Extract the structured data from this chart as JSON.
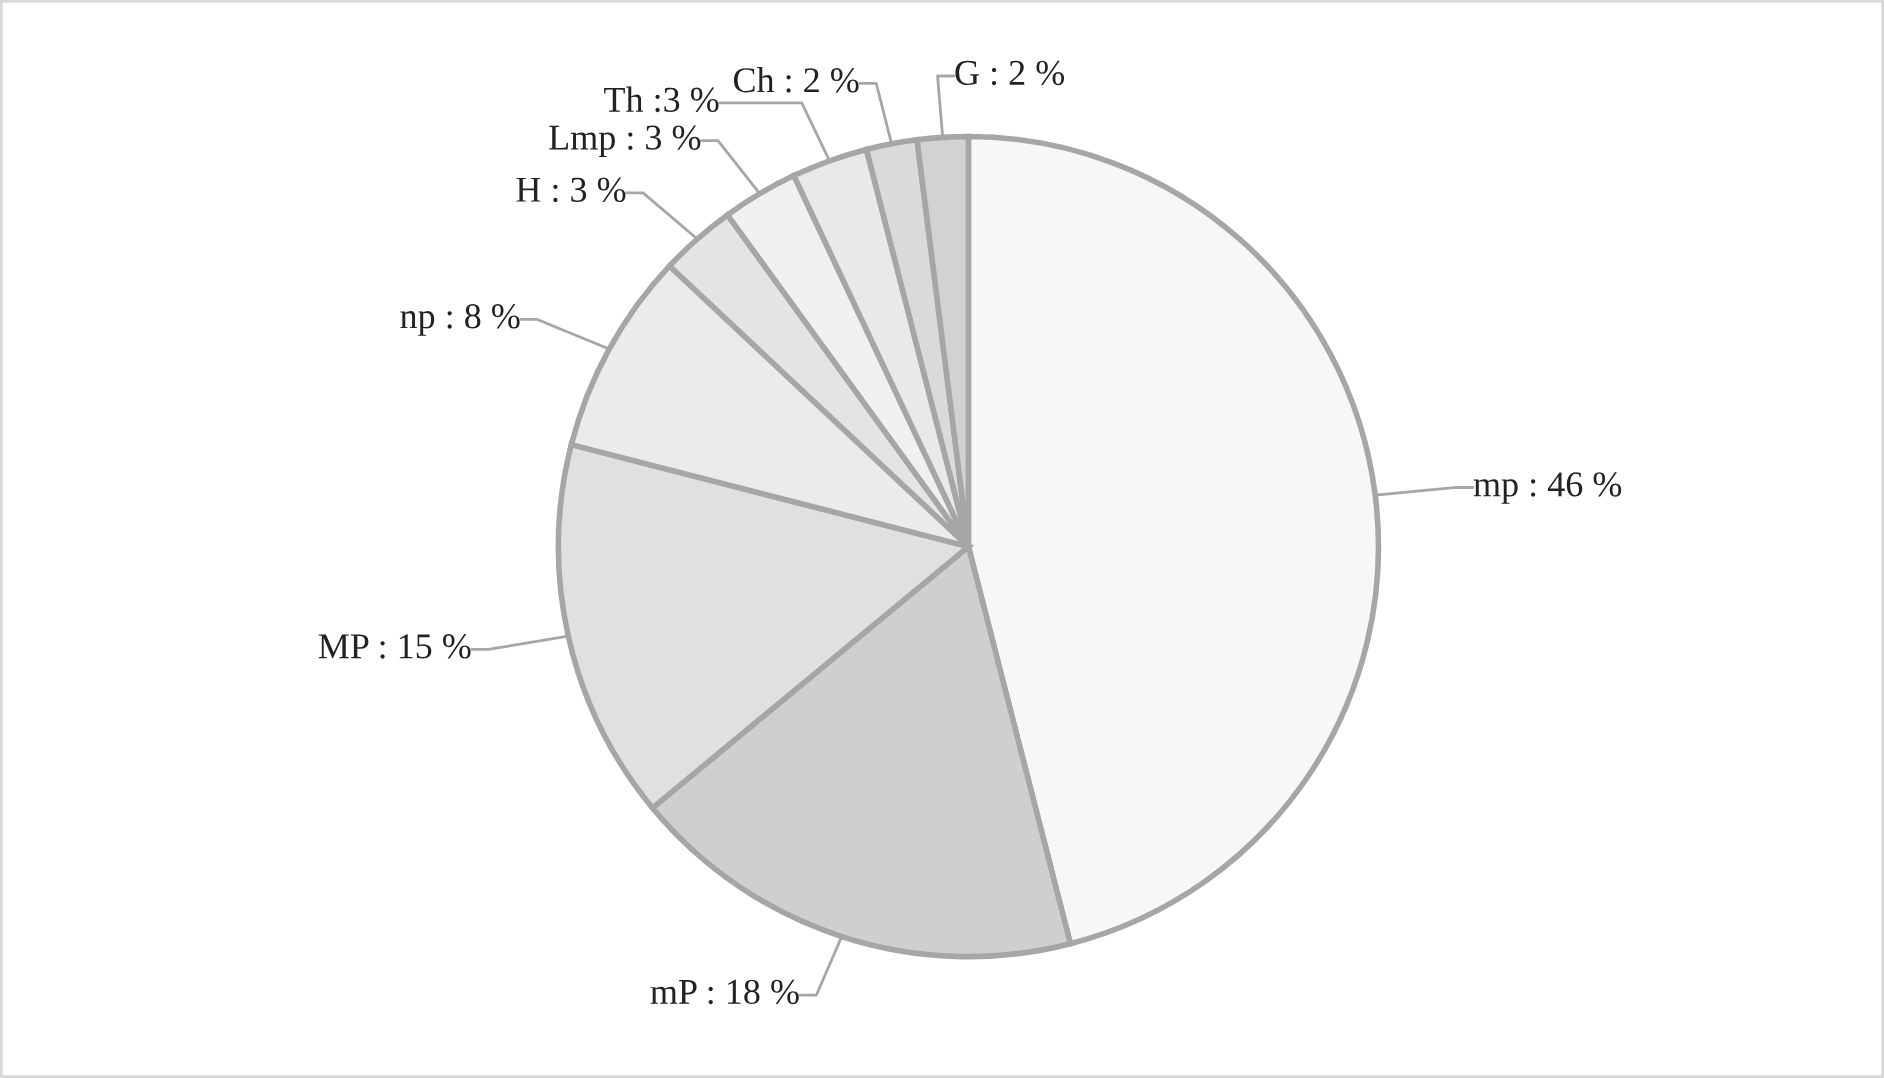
{
  "chart_data": {
    "type": "pie",
    "categories": [
      "mp : 46 %",
      "mP : 18 %",
      "MP : 15 %",
      "np : 8 %",
      "H : 3 %",
      "Lmp : 3 %",
      "Th :3 %",
      "Ch : 2 %",
      "G : 2 %"
    ],
    "values": [
      46,
      18,
      15,
      8,
      3,
      3,
      3,
      2,
      2
    ],
    "colors": [
      "#f7f7f7",
      "#cfcfcf",
      "#e0e0e0",
      "#ebebeb",
      "#e4e4e4",
      "#f0f0f0",
      "#e9e9e9",
      "#dadada",
      "#d2d2d2"
    ]
  }
}
